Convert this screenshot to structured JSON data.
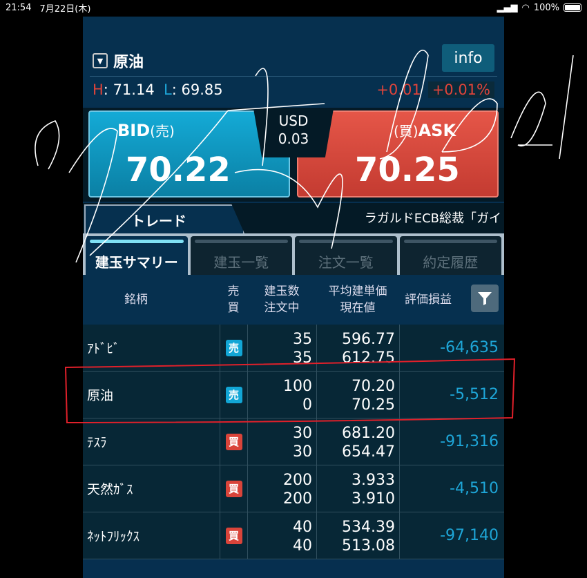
{
  "status_bar": {
    "time": "21:54",
    "date": "7月22日(木)",
    "battery": "100%"
  },
  "header": {
    "symbol": "原油",
    "info_label": "info",
    "high_label": "H",
    "high": "71.14",
    "low_label": "L",
    "low": "69.85",
    "change": "+0.01",
    "change_pct": "+0.01%"
  },
  "trade": {
    "bid_label": "BID",
    "bid_sub": "(売)",
    "bid_price": "70.22",
    "ask_sub": "(買)",
    "ask_label": "ASK",
    "ask_price": "70.25",
    "spread_currency": "USD",
    "spread": "0.03"
  },
  "tabs": {
    "trade_tab": "トレード",
    "news": "ラガルドECB総裁「ガイ",
    "sub": [
      "建玉サマリー",
      "建玉一覧",
      "注文一覧",
      "約定履歴"
    ]
  },
  "table": {
    "headers": {
      "name": "銘柄",
      "side_1": "売",
      "side_2": "買",
      "qty_1": "建玉数",
      "qty_2": "注文中",
      "price_1": "平均建単価",
      "price_2": "現在値",
      "pl": "評価損益"
    },
    "rows": [
      {
        "name": "ｱﾄﾞﾋﾞ",
        "side": "売",
        "qty": "35",
        "ordered": "35",
        "avg": "596.77",
        "current": "612.75",
        "pl": "-64,635"
      },
      {
        "name": "原油",
        "side": "売",
        "qty": "100",
        "ordered": "0",
        "avg": "70.20",
        "current": "70.25",
        "pl": "-5,512"
      },
      {
        "name": "ﾃｽﾗ",
        "side": "買",
        "qty": "30",
        "ordered": "30",
        "avg": "681.20",
        "current": "654.47",
        "pl": "-91,316"
      },
      {
        "name": "天然ｶﾞｽ",
        "side": "買",
        "qty": "200",
        "ordered": "200",
        "avg": "3.933",
        "current": "3.910",
        "pl": "-4,510"
      },
      {
        "name": "ﾈｯﾄﾌﾘｯｸｽ",
        "side": "買",
        "qty": "40",
        "ordered": "40",
        "avg": "534.39",
        "current": "513.08",
        "pl": "-97,140"
      }
    ]
  },
  "colors": {
    "sell": "#12a6d6",
    "buy": "#d9443a",
    "pl": "#1ea6d8",
    "annotation_box": "#e0202a"
  }
}
